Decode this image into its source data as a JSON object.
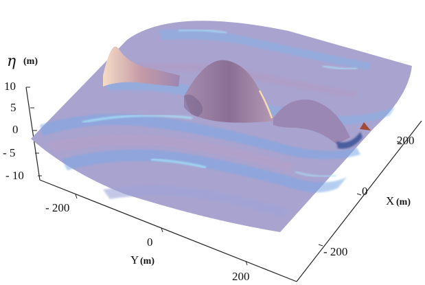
{
  "chart_data": {
    "type": "surface3d",
    "title": "",
    "zlabel": {
      "symbol": "η",
      "unit": "(m)"
    },
    "xlabel": {
      "name": "X",
      "unit": "(m)"
    },
    "ylabel": {
      "name": "Y",
      "unit": "(m)"
    },
    "zticks": [
      "10",
      "5",
      "0",
      "- 5",
      "- 10"
    ],
    "zticks_values": [
      10,
      5,
      0,
      -5,
      -10
    ],
    "xticks": [
      "200",
      "0",
      "- 200"
    ],
    "xticks_values": [
      200,
      0,
      -200
    ],
    "yticks": [
      "- 200",
      "0",
      "200"
    ],
    "yticks_values": [
      -200,
      0,
      200
    ],
    "xlim": [
      -300,
      300
    ],
    "ylim": [
      -300,
      300
    ],
    "zlim": [
      -10,
      10
    ],
    "surface_description_values": {
      "peak_eta": 9,
      "peak_x": 0,
      "peak_y": 0,
      "background_wave_amplitude": 2
    },
    "colors": {
      "crest": "#f3d9c4",
      "trough": "#6fa6e8",
      "mid": "#8c7cb0",
      "highlight": "#9fdcf5"
    }
  }
}
